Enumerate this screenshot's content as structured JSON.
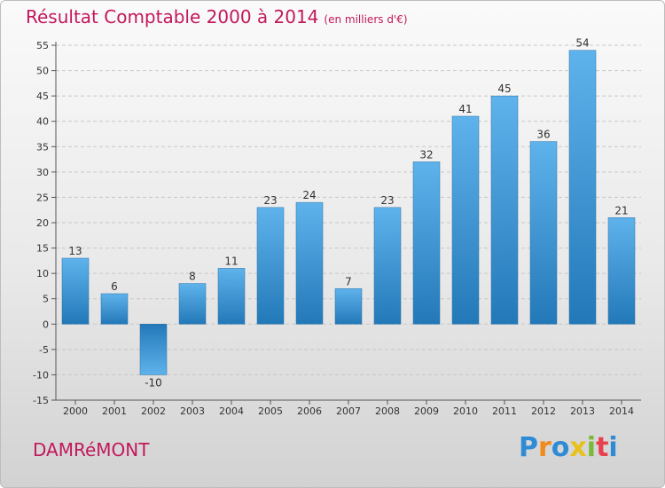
{
  "header": {
    "title": "Résultat Comptable 2000 à 2014",
    "subtitle": "(en milliers d'€)"
  },
  "footer": {
    "commune": "DAMRéMONT",
    "logo": {
      "letters": [
        "P",
        "r",
        "o",
        "x",
        "i",
        "t",
        "i"
      ],
      "colors": [
        "#2e8bd6",
        "#f08a1c",
        "#2e8bd6",
        "#e8c21a",
        "#7ab93a",
        "#e8414e",
        "#2e8bd6"
      ]
    }
  },
  "colors": {
    "title": "#c2185b",
    "bar_light": "#5fb3ec",
    "bar_dark": "#2378b8"
  },
  "chart_data": {
    "type": "bar",
    "title": "Résultat Comptable 2000 à 2014",
    "subtitle": "(en milliers d'€)",
    "categories": [
      "2000",
      "2001",
      "2002",
      "2003",
      "2004",
      "2005",
      "2006",
      "2007",
      "2008",
      "2009",
      "2010",
      "2011",
      "2012",
      "2013",
      "2014"
    ],
    "values": [
      13,
      6,
      -10,
      8,
      11,
      23,
      24,
      7,
      23,
      32,
      41,
      45,
      36,
      54,
      21
    ],
    "ylim": [
      -15,
      55
    ],
    "yticks": [
      -15,
      -10,
      -5,
      0,
      5,
      10,
      15,
      20,
      25,
      30,
      35,
      40,
      45,
      50,
      55
    ],
    "grid": true
  }
}
